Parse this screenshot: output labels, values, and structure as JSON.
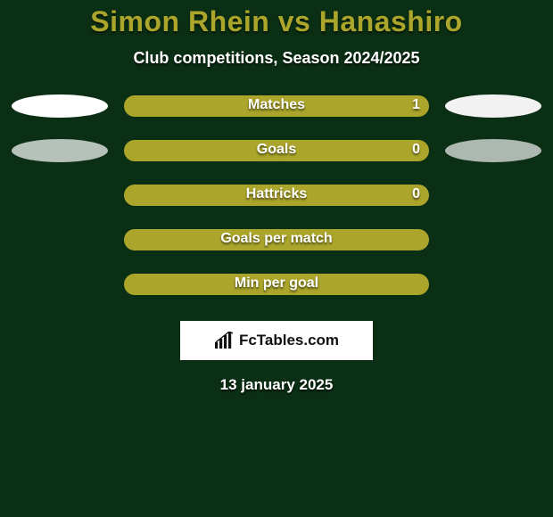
{
  "colors": {
    "background": "#0b2f14",
    "title": "#aba52b",
    "bar_fill": "#aba52b",
    "ellipse_left": "#ffffff",
    "ellipse_right": "#f2f2f2",
    "brand_bg": "#ffffff",
    "brand_text": "#111111"
  },
  "header": {
    "title": "Simon Rhein vs Hanashiro",
    "subtitle": "Club competitions, Season 2024/2025"
  },
  "stats": [
    {
      "label": "Matches",
      "value": "1",
      "show_value": true,
      "left_ellipse": true,
      "right_ellipse": true,
      "ellipse_faded": false
    },
    {
      "label": "Goals",
      "value": "0",
      "show_value": true,
      "left_ellipse": true,
      "right_ellipse": true,
      "ellipse_faded": true
    },
    {
      "label": "Hattricks",
      "value": "0",
      "show_value": true,
      "left_ellipse": false,
      "right_ellipse": false,
      "ellipse_faded": false
    },
    {
      "label": "Goals per match",
      "value": "",
      "show_value": false,
      "left_ellipse": false,
      "right_ellipse": false,
      "ellipse_faded": false
    },
    {
      "label": "Min per goal",
      "value": "",
      "show_value": false,
      "left_ellipse": false,
      "right_ellipse": false,
      "ellipse_faded": false
    }
  ],
  "brand": {
    "text": "FcTables.com"
  },
  "footer": {
    "date": "13 january 2025"
  }
}
